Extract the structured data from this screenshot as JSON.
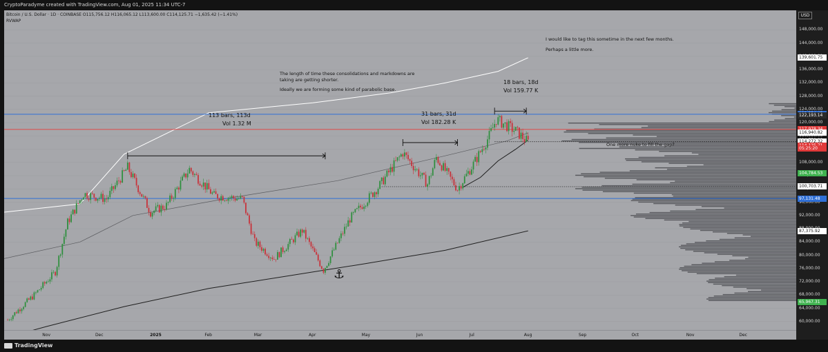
{
  "header": {
    "credit": "CryptoParadyme created with TradingView.com, Aug 01, 2025 11:34 UTC-7"
  },
  "legend": {
    "symbol_line": "Bitcoin / U.S. Dollar · 1D · COINBASE  O115,756.12  H116,065.12  L113,600.00  C114,125.71  −1,635.42 (−1.41%)",
    "indicator": "RVWAP"
  },
  "annotations": {
    "top_right_1": "I would like to tag this sometime in the next few months.",
    "top_right_2": "Perhaps a little more.",
    "center_1": "The length of time these consolidations and markdowns are",
    "center_2": "taking are getting shorter.",
    "center_3": "Ideally we are forming some kind of parabolic base.",
    "range1_bars": "113 bars, 113d",
    "range1_vol": "Vol 1.32 M",
    "range2_bars": "31 bars, 31d",
    "range2_vol": "Vol 182.28 K",
    "range3_bars": "18 bars, 18d",
    "range3_vol": "Vol 159.77 K",
    "gap_note": "One more nuke to fill the gap?",
    "anchor_glyph": "⚓"
  },
  "price_axis": {
    "currency": "USD",
    "ticks": [
      "148,000.00",
      "144,000.00",
      "140,000.00",
      "136,000.00",
      "132,000.00",
      "128,000.00",
      "124,000.00",
      "120,000.00",
      "116,000.00",
      "112,000.00",
      "108,000.00",
      "104,000.00",
      "100,000.00",
      "96,000.00",
      "92,000.00",
      "88,000.00",
      "84,000.00",
      "80,000.00",
      "76,000.00",
      "72,000.00",
      "68,000.00",
      "64,000.00",
      "60,000.00"
    ],
    "tags": [
      {
        "label": "139,601.75",
        "bg": "#ffffff",
        "fg": "#111111",
        "v": 139601.75
      },
      {
        "label": "122,554.45",
        "bg": "#2f6fd6",
        "fg": "#ffffff",
        "v": 122554.45
      },
      {
        "label": "122,193.14",
        "bg": "#2a2a2a",
        "fg": "#ffffff",
        "v": 122193.14
      },
      {
        "label": "117,978.34",
        "bg": "#e03a3a",
        "fg": "#ffffff",
        "v": 117978.34
      },
      {
        "label": "116,940.82",
        "bg": "#ffffff",
        "fg": "#111111",
        "v": 116940.82
      },
      {
        "label": "114,750.00",
        "bg": "#111111",
        "fg": "#ffffff",
        "v": 114750
      },
      {
        "label": "114,272.32",
        "bg": "#ffffff",
        "fg": "#111111",
        "v": 114272.32
      },
      {
        "label": "114,125.71",
        "bg": "#e03a3a",
        "fg": "#ffffff",
        "v": 113100
      },
      {
        "label": "05:25:20",
        "bg": "#e03a3a",
        "fg": "#ffffff",
        "v": 112250
      },
      {
        "label": "104,784.53",
        "bg": "#3fb24f",
        "fg": "#ffffff",
        "v": 104784.53
      },
      {
        "label": "100,703.71",
        "bg": "#ffffff",
        "fg": "#111111",
        "v": 100703.71
      },
      {
        "label": "97,131.48",
        "bg": "#2f6fd6",
        "fg": "#ffffff",
        "v": 97131.48
      },
      {
        "label": "87,375.92",
        "bg": "#ffffff",
        "fg": "#111111",
        "v": 87375.92
      },
      {
        "label": "65,967.31",
        "bg": "#3fb24f",
        "fg": "#ffffff",
        "v": 65967.31
      }
    ]
  },
  "time_axis": {
    "labels": [
      "Nov",
      "Dec",
      "2025",
      "Feb",
      "Mar",
      "Apr",
      "May",
      "Jun",
      "Jul",
      "Aug",
      "Sep",
      "Oct",
      "Nov",
      "Dec"
    ]
  },
  "footer": {
    "brand": "TradingView"
  },
  "colors": {
    "chart_bg": "#a6a7ab",
    "up": "#2f8f3e",
    "down": "#c8323a",
    "resistance": "#2f6fd6",
    "level_red": "#e04848"
  },
  "chart_data": {
    "type": "candlestick",
    "title": "",
    "symbol": "Bitcoin / U.S. Dollar · 1D · COINBASE",
    "ylim": [
      58500,
      151000
    ],
    "xrange": [
      "2024-10-08",
      "2025-12-31"
    ],
    "horizontal_levels": [
      {
        "value": 122554.45,
        "color": "#2f6fd6"
      },
      {
        "value": 117978.34,
        "color": "#e04848"
      },
      {
        "value": 97131.48,
        "color": "#2f6fd6"
      }
    ],
    "dotted_levels": [
      {
        "value": 100703.71,
        "from": "2025-05-10",
        "to": "2025-12-31"
      },
      {
        "value": 114272.32,
        "from": "2025-07-13",
        "to": "2025-12-31"
      }
    ],
    "price_anchors": [
      [
        "2024-10-10",
        60500
      ],
      [
        "2024-10-25",
        68000
      ],
      [
        "2024-11-06",
        75000
      ],
      [
        "2024-11-13",
        90000
      ],
      [
        "2024-11-22",
        98500
      ],
      [
        "2024-12-05",
        97000
      ],
      [
        "2024-12-17",
        106500
      ],
      [
        "2024-12-30",
        93000
      ],
      [
        "2025-01-08",
        95000
      ],
      [
        "2025-01-21",
        106000
      ],
      [
        "2025-02-04",
        98000
      ],
      [
        "2025-02-20",
        97000
      ],
      [
        "2025-02-27",
        84000
      ],
      [
        "2025-03-10",
        79000
      ],
      [
        "2025-03-26",
        87500
      ],
      [
        "2025-04-07",
        75500
      ],
      [
        "2025-04-22",
        91000
      ],
      [
        "2025-05-08",
        100500
      ],
      [
        "2025-05-22",
        111000
      ],
      [
        "2025-06-05",
        101500
      ],
      [
        "2025-06-10",
        109500
      ],
      [
        "2025-06-22",
        100000
      ],
      [
        "2025-07-01",
        107500
      ],
      [
        "2025-07-10",
        116000
      ],
      [
        "2025-07-14",
        121000
      ],
      [
        "2025-07-25",
        117500
      ],
      [
        "2025-08-01",
        114125.71
      ]
    ],
    "rvwap_upper": [
      [
        "2024-10-08",
        93000
      ],
      [
        "2024-11-20",
        95500
      ],
      [
        "2024-12-15",
        110500
      ],
      [
        "2025-02-01",
        123000
      ],
      [
        "2025-04-01",
        126000
      ],
      [
        "2025-05-15",
        129000
      ],
      [
        "2025-06-15",
        132000
      ],
      [
        "2025-07-15",
        135500
      ],
      [
        "2025-08-01",
        139601.75
      ]
    ],
    "rvwap_middle": [
      [
        "2024-10-08",
        79000
      ],
      [
        "2024-11-20",
        84000
      ],
      [
        "2024-12-20",
        92000
      ],
      [
        "2025-02-15",
        97500
      ],
      [
        "2025-04-15",
        102500
      ],
      [
        "2025-06-15",
        110000
      ],
      [
        "2025-07-20",
        114500
      ],
      [
        "2025-08-01",
        116940.82
      ]
    ],
    "rvwap_lower": [
      [
        "2024-10-08",
        55000
      ],
      [
        "2024-11-01",
        58500
      ],
      [
        "2024-12-15",
        64500
      ],
      [
        "2025-02-01",
        70000
      ],
      [
        "2025-03-15",
        73500
      ],
      [
        "2025-05-01",
        77500
      ],
      [
        "2025-06-15",
        81500
      ],
      [
        "2025-08-01",
        87375.92
      ]
    ],
    "short_vwap": [
      [
        "2025-06-25",
        100500
      ],
      [
        "2025-07-05",
        103500
      ],
      [
        "2025-07-15",
        108500
      ],
      [
        "2025-07-25",
        112000
      ],
      [
        "2025-08-01",
        114750
      ]
    ],
    "measures": [
      {
        "from": "2024-12-17",
        "to": "2025-04-08",
        "price": 110000,
        "bars": "113 bars, 113d",
        "vol": "Vol 1.32 M"
      },
      {
        "from": "2025-05-22",
        "to": "2025-06-22",
        "price": 114000,
        "bars": "31 bars, 31d",
        "vol": "Vol 182.28 K"
      },
      {
        "from": "2025-07-13",
        "to": "2025-07-31",
        "price": 123500,
        "bars": "18 bars, 18d",
        "vol": "Vol 159.77 K"
      }
    ]
  }
}
